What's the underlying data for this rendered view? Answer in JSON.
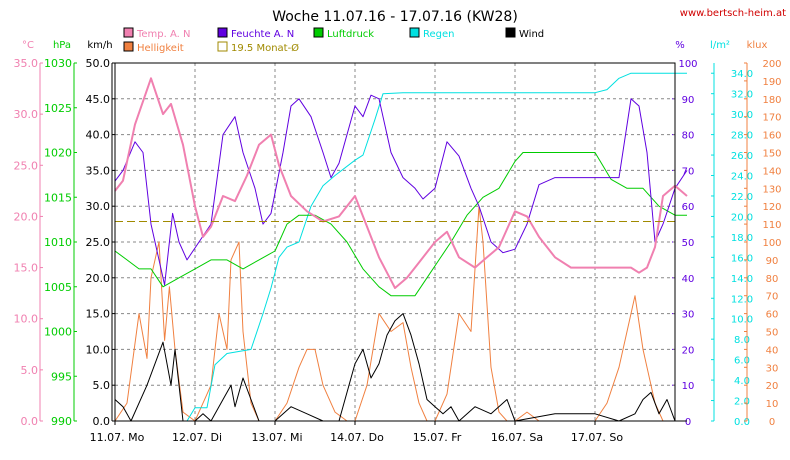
{
  "chart_data": {
    "type": "line",
    "title": "Woche 11.07.16 - 17.07.16 (KW28)",
    "source": "www.bertsch-heim.at",
    "x_categories": [
      "11.07. Mo",
      "12.07. Di",
      "13.07. Mi",
      "14.07. Do",
      "15.07. Fr",
      "16.07. Sa",
      "17.07. So"
    ],
    "x_range_days": [
      0,
      7
    ],
    "legend": [
      {
        "label": "Temp. A. N",
        "color": "#f080b0"
      },
      {
        "label": "Helligkeit",
        "color": "#f08040"
      },
      {
        "label": "Feuchte A. N",
        "color": "#6000e0"
      },
      {
        "label": "19.5 Monat-Ø",
        "color": "#a08a00"
      },
      {
        "label": "Luftdruck",
        "color": "#00cc00"
      },
      {
        "label": "Regen",
        "color": "#00e0e0"
      },
      {
        "label": "Wind",
        "color": "#000000"
      }
    ],
    "axes": {
      "temp": {
        "unit": "°C",
        "min": 0,
        "max": 35,
        "ticks": [
          "0.0",
          "5.0",
          "10.0",
          "15.0",
          "20.0",
          "25.0",
          "30.0",
          "35.0"
        ],
        "color": "#f080b0"
      },
      "pressure": {
        "unit": "hPa",
        "min": 990,
        "max": 1030,
        "ticks": [
          "990",
          "995",
          "1000",
          "1005",
          "1010",
          "1015",
          "1020",
          "1025",
          "1030"
        ],
        "color": "#00cc00"
      },
      "wind": {
        "unit": "km/h",
        "min": 0,
        "max": 50,
        "ticks": [
          "0.0",
          "5.0",
          "10.0",
          "15.0",
          "20.0",
          "25.0",
          "30.0",
          "35.0",
          "40.0",
          "45.0",
          "50.0"
        ],
        "color": "#000000"
      },
      "humidity": {
        "unit": "%",
        "min": 0,
        "max": 100,
        "ticks": [
          "0",
          "10",
          "20",
          "30",
          "40",
          "50",
          "60",
          "70",
          "80",
          "90",
          "100"
        ],
        "color": "#6000e0"
      },
      "rain": {
        "unit": "l/m²",
        "min": 0,
        "max": 35,
        "ticks": [
          "0.0",
          "2.0",
          "4.0",
          "6.0",
          "8.0",
          "10.0",
          "12.0",
          "14.0",
          "16.0",
          "18.0",
          "20.0",
          "22.0",
          "24.0",
          "26.0",
          "28.0",
          "30.0",
          "32.0",
          "34.0"
        ],
        "color": "#00e0e0"
      },
      "light": {
        "unit": "klux",
        "min": 0,
        "max": 200,
        "ticks": [
          "0",
          "10",
          "20",
          "30",
          "40",
          "50",
          "60",
          "70",
          "80",
          "90",
          "100",
          "110",
          "120",
          "130",
          "140",
          "150",
          "160",
          "170",
          "180",
          "190",
          "200"
        ],
        "color": "#f08040"
      }
    },
    "monthly_avg_temp": 19.5,
    "series": [
      {
        "name": "Temp. A. N",
        "axis": "temp",
        "color": "#f080b0",
        "points": [
          [
            0,
            22.5
          ],
          [
            0.1,
            23.5
          ],
          [
            0.25,
            29
          ],
          [
            0.45,
            33.5
          ],
          [
            0.6,
            30
          ],
          [
            0.7,
            31
          ],
          [
            0.85,
            27
          ],
          [
            1.0,
            21
          ],
          [
            1.1,
            18
          ],
          [
            1.2,
            19
          ],
          [
            1.35,
            22
          ],
          [
            1.5,
            21.5
          ],
          [
            1.65,
            24
          ],
          [
            1.8,
            27
          ],
          [
            1.95,
            28
          ],
          [
            2.05,
            25
          ],
          [
            2.2,
            22
          ],
          [
            2.4,
            20.5
          ],
          [
            2.6,
            19.5
          ],
          [
            2.8,
            20
          ],
          [
            3.0,
            22
          ],
          [
            3.1,
            20
          ],
          [
            3.3,
            16
          ],
          [
            3.5,
            13
          ],
          [
            3.65,
            14
          ],
          [
            3.8,
            15.5
          ],
          [
            4.0,
            17.5
          ],
          [
            4.15,
            18.5
          ],
          [
            4.3,
            16
          ],
          [
            4.5,
            15
          ],
          [
            4.65,
            16
          ],
          [
            4.8,
            17
          ],
          [
            5.0,
            20.5
          ],
          [
            5.15,
            20
          ],
          [
            5.3,
            18
          ],
          [
            5.5,
            16
          ],
          [
            5.7,
            15
          ],
          [
            6.0,
            15
          ],
          [
            6.3,
            15
          ],
          [
            6.45,
            15
          ],
          [
            6.55,
            14.5
          ],
          [
            6.65,
            15
          ],
          [
            6.75,
            17
          ],
          [
            6.85,
            22
          ],
          [
            7.0,
            23
          ],
          [
            7.15,
            22
          ]
        ]
      },
      {
        "name": "Feuchte A. N",
        "axis": "humidity",
        "color": "#6000e0",
        "points": [
          [
            0,
            67
          ],
          [
            0.1,
            70
          ],
          [
            0.25,
            78
          ],
          [
            0.35,
            75
          ],
          [
            0.45,
            55
          ],
          [
            0.55,
            45
          ],
          [
            0.62,
            38
          ],
          [
            0.72,
            58
          ],
          [
            0.8,
            50
          ],
          [
            0.9,
            45
          ],
          [
            1.05,
            50
          ],
          [
            1.2,
            55
          ],
          [
            1.35,
            80
          ],
          [
            1.5,
            85
          ],
          [
            1.6,
            75
          ],
          [
            1.75,
            65
          ],
          [
            1.85,
            55
          ],
          [
            1.95,
            58
          ],
          [
            2.1,
            75
          ],
          [
            2.2,
            88
          ],
          [
            2.3,
            90
          ],
          [
            2.45,
            85
          ],
          [
            2.6,
            75
          ],
          [
            2.7,
            68
          ],
          [
            2.8,
            72
          ],
          [
            3.0,
            88
          ],
          [
            3.1,
            85
          ],
          [
            3.2,
            91
          ],
          [
            3.3,
            90
          ],
          [
            3.45,
            75
          ],
          [
            3.6,
            68
          ],
          [
            3.75,
            65
          ],
          [
            3.85,
            62
          ],
          [
            4.0,
            65
          ],
          [
            4.15,
            78
          ],
          [
            4.3,
            74
          ],
          [
            4.45,
            65
          ],
          [
            4.55,
            60
          ],
          [
            4.7,
            50
          ],
          [
            4.85,
            47
          ],
          [
            5.0,
            48
          ],
          [
            5.15,
            55
          ],
          [
            5.3,
            66
          ],
          [
            5.5,
            68
          ],
          [
            5.7,
            68
          ],
          [
            6.0,
            68
          ],
          [
            6.3,
            68
          ],
          [
            6.45,
            90
          ],
          [
            6.55,
            88
          ],
          [
            6.65,
            75
          ],
          [
            6.75,
            50
          ],
          [
            6.85,
            55
          ],
          [
            7.0,
            65
          ],
          [
            7.15,
            70
          ]
        ]
      },
      {
        "name": "Luftdruck",
        "axis": "pressure",
        "color": "#00cc00",
        "points": [
          [
            0,
            1009
          ],
          [
            0.15,
            1008
          ],
          [
            0.3,
            1007
          ],
          [
            0.45,
            1007
          ],
          [
            0.6,
            1005
          ],
          [
            0.8,
            1006
          ],
          [
            1.0,
            1007
          ],
          [
            1.2,
            1008
          ],
          [
            1.4,
            1008
          ],
          [
            1.6,
            1007
          ],
          [
            1.8,
            1008
          ],
          [
            2.0,
            1009
          ],
          [
            2.15,
            1012
          ],
          [
            2.3,
            1013
          ],
          [
            2.5,
            1013
          ],
          [
            2.7,
            1012
          ],
          [
            2.9,
            1010
          ],
          [
            3.1,
            1007
          ],
          [
            3.3,
            1005
          ],
          [
            3.45,
            1004
          ],
          [
            3.6,
            1004
          ],
          [
            3.75,
            1004
          ],
          [
            3.9,
            1006
          ],
          [
            4.05,
            1008
          ],
          [
            4.2,
            1010
          ],
          [
            4.4,
            1013
          ],
          [
            4.6,
            1015
          ],
          [
            4.8,
            1016
          ],
          [
            5.0,
            1019
          ],
          [
            5.1,
            1020
          ],
          [
            5.3,
            1020
          ],
          [
            5.5,
            1020
          ],
          [
            5.7,
            1020
          ],
          [
            6.0,
            1020
          ],
          [
            6.2,
            1017
          ],
          [
            6.4,
            1016
          ],
          [
            6.6,
            1016
          ],
          [
            6.8,
            1014
          ],
          [
            7.0,
            1013
          ],
          [
            7.15,
            1013
          ]
        ]
      },
      {
        "name": "Regen",
        "axis": "rain",
        "color": "#00e0e0",
        "cumulative": true,
        "points": [
          [
            0,
            0
          ],
          [
            0.9,
            0
          ],
          [
            1.0,
            1.3
          ],
          [
            1.15,
            1.3
          ],
          [
            1.25,
            5.5
          ],
          [
            1.4,
            6.6
          ],
          [
            1.7,
            7.0
          ],
          [
            1.85,
            10.5
          ],
          [
            1.95,
            13.0
          ],
          [
            2.05,
            16.0
          ],
          [
            2.15,
            17.0
          ],
          [
            2.3,
            17.5
          ],
          [
            2.45,
            21.0
          ],
          [
            2.6,
            23.0
          ],
          [
            2.75,
            24.0
          ],
          [
            3.0,
            25.5
          ],
          [
            3.1,
            26.0
          ],
          [
            3.25,
            29.5
          ],
          [
            3.35,
            32.0
          ],
          [
            3.6,
            32.1
          ],
          [
            4.0,
            32.1
          ],
          [
            5.0,
            32.1
          ],
          [
            5.5,
            32.1
          ],
          [
            6.0,
            32.1
          ],
          [
            6.15,
            32.4
          ],
          [
            6.3,
            33.5
          ],
          [
            6.45,
            34.0
          ],
          [
            6.8,
            34.0
          ],
          [
            7.15,
            34.0
          ]
        ]
      },
      {
        "name": "Helligkeit",
        "axis": "light",
        "color": "#f08040",
        "points": [
          [
            0,
            0
          ],
          [
            0.15,
            10
          ],
          [
            0.3,
            60
          ],
          [
            0.4,
            35
          ],
          [
            0.45,
            80
          ],
          [
            0.55,
            100
          ],
          [
            0.62,
            45
          ],
          [
            0.68,
            75
          ],
          [
            0.75,
            40
          ],
          [
            0.85,
            5
          ],
          [
            1.0,
            0
          ],
          [
            1.1,
            10
          ],
          [
            1.2,
            20
          ],
          [
            1.3,
            60
          ],
          [
            1.4,
            40
          ],
          [
            1.45,
            90
          ],
          [
            1.55,
            100
          ],
          [
            1.6,
            50
          ],
          [
            1.7,
            10
          ],
          [
            1.8,
            0
          ],
          [
            2.0,
            0
          ],
          [
            2.15,
            10
          ],
          [
            2.3,
            30
          ],
          [
            2.4,
            40
          ],
          [
            2.5,
            40
          ],
          [
            2.6,
            20
          ],
          [
            2.75,
            5
          ],
          [
            2.9,
            0
          ],
          [
            3.0,
            0
          ],
          [
            3.15,
            20
          ],
          [
            3.3,
            60
          ],
          [
            3.45,
            50
          ],
          [
            3.6,
            55
          ],
          [
            3.7,
            30
          ],
          [
            3.8,
            10
          ],
          [
            3.9,
            0
          ],
          [
            4.0,
            0
          ],
          [
            4.15,
            15
          ],
          [
            4.3,
            60
          ],
          [
            4.45,
            50
          ],
          [
            4.55,
            120
          ],
          [
            4.6,
            100
          ],
          [
            4.7,
            30
          ],
          [
            4.8,
            5
          ],
          [
            4.9,
            0
          ],
          [
            5.0,
            0
          ],
          [
            5.15,
            5
          ],
          [
            5.3,
            0
          ],
          [
            6.0,
            0
          ],
          [
            6.15,
            10
          ],
          [
            6.3,
            30
          ],
          [
            6.45,
            60
          ],
          [
            6.5,
            70
          ],
          [
            6.6,
            40
          ],
          [
            6.65,
            30
          ],
          [
            6.75,
            10
          ],
          [
            6.85,
            0
          ],
          [
            7.15,
            0
          ]
        ]
      },
      {
        "name": "Wind",
        "axis": "wind",
        "color": "#000000",
        "points": [
          [
            0,
            3
          ],
          [
            0.1,
            2
          ],
          [
            0.2,
            0
          ],
          [
            0.4,
            5
          ],
          [
            0.5,
            8
          ],
          [
            0.6,
            11
          ],
          [
            0.7,
            5
          ],
          [
            0.75,
            10
          ],
          [
            0.85,
            0
          ],
          [
            1.0,
            0
          ],
          [
            1.1,
            1
          ],
          [
            1.2,
            0
          ],
          [
            1.35,
            3
          ],
          [
            1.45,
            5
          ],
          [
            1.5,
            2
          ],
          [
            1.6,
            6
          ],
          [
            1.7,
            3
          ],
          [
            1.8,
            0
          ],
          [
            2.0,
            0
          ],
          [
            2.2,
            2
          ],
          [
            2.4,
            1
          ],
          [
            2.6,
            0
          ],
          [
            2.8,
            0
          ],
          [
            3.0,
            8
          ],
          [
            3.1,
            10
          ],
          [
            3.2,
            6
          ],
          [
            3.3,
            8
          ],
          [
            3.4,
            12
          ],
          [
            3.5,
            14
          ],
          [
            3.6,
            15
          ],
          [
            3.7,
            12
          ],
          [
            3.8,
            8
          ],
          [
            3.9,
            3
          ],
          [
            4.0,
            2
          ],
          [
            4.1,
            1
          ],
          [
            4.2,
            2
          ],
          [
            4.3,
            0
          ],
          [
            4.5,
            2
          ],
          [
            4.7,
            1
          ],
          [
            4.9,
            3
          ],
          [
            5.0,
            0
          ],
          [
            5.5,
            1
          ],
          [
            6.0,
            1
          ],
          [
            6.3,
            0
          ],
          [
            6.5,
            1
          ],
          [
            6.6,
            3
          ],
          [
            6.7,
            4
          ],
          [
            6.8,
            1
          ],
          [
            6.9,
            3
          ],
          [
            7.0,
            0
          ],
          [
            7.15,
            0
          ]
        ]
      }
    ]
  }
}
